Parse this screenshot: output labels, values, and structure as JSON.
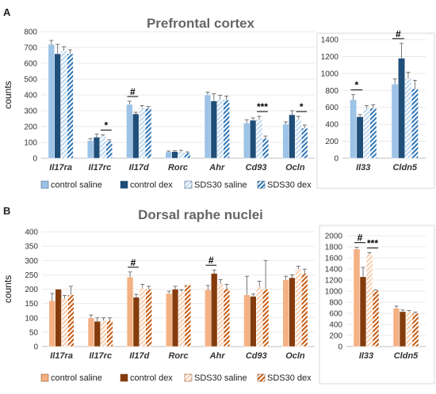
{
  "panel_a": {
    "letter": "A",
    "title": "Prefrontal cortex",
    "legend": [
      "control saline",
      "control dex",
      "SDS30 saline",
      "SDS30 dex"
    ]
  },
  "panel_b": {
    "letter": "B",
    "title": "Dorsal raphe nuclei",
    "legend": [
      "control saline",
      "control dex",
      "SDS30 saline",
      "SDS30 dex"
    ]
  },
  "colors": {
    "panel_a": [
      "#9DC3E6",
      "#1F4E79",
      "#BDD7EE",
      "#2E75B6"
    ],
    "panel_b": [
      "#F4B183",
      "#843C0C",
      "#F8CBAD",
      "#C55A11"
    ]
  },
  "chart_data": [
    {
      "id": "A-main",
      "type": "bar",
      "title": "Prefrontal cortex",
      "ylabel": "counts",
      "ylim": [
        0,
        800
      ],
      "yticks": [
        0,
        100,
        200,
        300,
        400,
        500,
        600,
        700,
        800
      ],
      "categories": [
        "Il17ra",
        "Il17rc",
        "Il17d",
        "Rorc",
        "Ahr",
        "Cd93",
        "Ocln"
      ],
      "series": [
        {
          "name": "control saline",
          "values": [
            720,
            112,
            340,
            40,
            400,
            222,
            215
          ],
          "errors": [
            25,
            12,
            20,
            5,
            18,
            20,
            15
          ]
        },
        {
          "name": "control dex",
          "values": [
            660,
            133,
            280,
            42,
            362,
            240,
            275
          ],
          "errors": [
            60,
            20,
            10,
            5,
            45,
            15,
            25
          ]
        },
        {
          "name": "SDS30 saline",
          "values": [
            680,
            138,
            318,
            45,
            372,
            245,
            250
          ],
          "errors": [
            25,
            10,
            15,
            5,
            25,
            20,
            15
          ]
        },
        {
          "name": "SDS30 dex",
          "values": [
            660,
            108,
            315,
            35,
            368,
            125,
            190
          ],
          "errors": [
            25,
            8,
            12,
            5,
            25,
            15,
            20
          ]
        }
      ],
      "annotations": [
        {
          "category": "Il17rc",
          "from": 2,
          "to": 3,
          "label": "*"
        },
        {
          "category": "Il17d",
          "from": 0,
          "to": 1,
          "label": "#"
        },
        {
          "category": "Cd93",
          "from": 2,
          "to": 3,
          "label": "***"
        },
        {
          "category": "Ocln",
          "from": 2,
          "to": 3,
          "label": "*"
        }
      ],
      "legend": "bottom"
    },
    {
      "id": "A-side",
      "type": "bar",
      "ylim": [
        0,
        1400
      ],
      "yticks": [
        0,
        200,
        400,
        600,
        800,
        1000,
        1200,
        1400
      ],
      "categories": [
        "Il33",
        "Cldn5"
      ],
      "series": [
        {
          "name": "control saline",
          "values": [
            690,
            875
          ],
          "errors": [
            60,
            60
          ]
        },
        {
          "name": "control dex",
          "values": [
            490,
            1180
          ],
          "errors": [
            25,
            175
          ]
        },
        {
          "name": "SDS30 saline",
          "values": [
            590,
            940
          ],
          "errors": [
            30,
            75
          ]
        },
        {
          "name": "SDS30 dex",
          "values": [
            590,
            820
          ],
          "errors": [
            40,
            100
          ]
        }
      ],
      "annotations": [
        {
          "category": "Il33",
          "from": 0,
          "to": 1,
          "label": "*"
        },
        {
          "category": "Cldn5",
          "from": 0,
          "to": 1,
          "label": "#"
        }
      ]
    },
    {
      "id": "B-main",
      "type": "bar",
      "title": "Dorsal raphe nuclei",
      "ylabel": "counts",
      "ylim": [
        0,
        400
      ],
      "yticks": [
        0,
        50,
        100,
        150,
        200,
        250,
        300,
        350,
        400
      ],
      "categories": [
        "Il17ra",
        "Il17rc",
        "Il17d",
        "Rorc",
        "Ahr",
        "Cd93",
        "Ocln"
      ],
      "series": [
        {
          "name": "control saline",
          "values": [
            160,
            100,
            242,
            185,
            198,
            180,
            233
          ],
          "errors": [
            25,
            10,
            18,
            8,
            15,
            65,
            12
          ]
        },
        {
          "name": "control dex",
          "values": [
            200,
            88,
            172,
            200,
            255,
            175,
            240
          ],
          "errors": [
            0,
            12,
            10,
            10,
            12,
            8,
            10
          ]
        },
        {
          "name": "SDS30 saline",
          "values": [
            168,
            90,
            205,
            190,
            218,
            208,
            270
          ],
          "errors": [
            10,
            10,
            12,
            8,
            15,
            20,
            10
          ]
        },
        {
          "name": "SDS30 dex",
          "values": [
            180,
            90,
            200,
            215,
            202,
            200,
            255
          ],
          "errors": [
            30,
            10,
            10,
            0,
            15,
            100,
            15
          ]
        }
      ],
      "annotations": [
        {
          "category": "Il17d",
          "from": 0,
          "to": 1,
          "label": "#"
        },
        {
          "category": "Ahr",
          "from": 0,
          "to": 1,
          "label": "#"
        }
      ],
      "legend": "bottom"
    },
    {
      "id": "B-side",
      "type": "bar",
      "ylim": [
        0,
        2000
      ],
      "yticks": [
        0,
        200,
        400,
        600,
        800,
        1000,
        1200,
        1400,
        1600,
        1800,
        2000
      ],
      "categories": [
        "Il33",
        "Cldn5"
      ],
      "series": [
        {
          "name": "control saline",
          "values": [
            1760,
            690
          ],
          "errors": [
            30,
            40
          ]
        },
        {
          "name": "control dex",
          "values": [
            1260,
            630
          ],
          "errors": [
            170,
            30
          ]
        },
        {
          "name": "SDS30 saline",
          "values": [
            1670,
            630
          ],
          "errors": [
            25,
            20
          ]
        },
        {
          "name": "SDS30 dex",
          "values": [
            1010,
            600
          ],
          "errors": [
            15,
            20
          ]
        }
      ],
      "annotations": [
        {
          "category": "Il33",
          "from": 0,
          "to": 1,
          "label": "#"
        },
        {
          "category": "Il33",
          "from": 2,
          "to": 3,
          "label": "***"
        }
      ]
    }
  ]
}
